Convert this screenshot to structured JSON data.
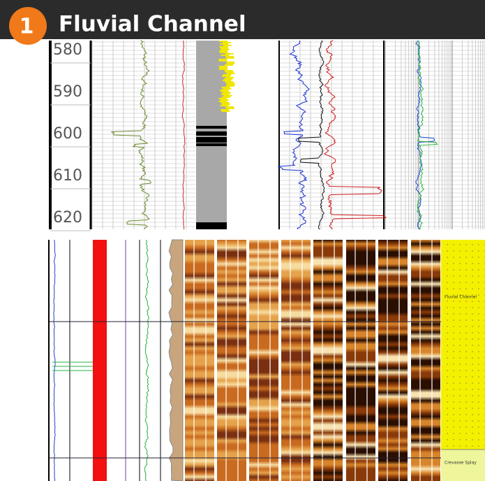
{
  "header": {
    "badge": "1",
    "title": "Fluvial Channel"
  },
  "depth_track": {
    "labels": [
      580,
      590,
      600,
      610,
      620
    ]
  },
  "facies": [
    {
      "label": "Fluvial Channel"
    },
    {
      "label": "Crevasse Splay"
    }
  ]
}
